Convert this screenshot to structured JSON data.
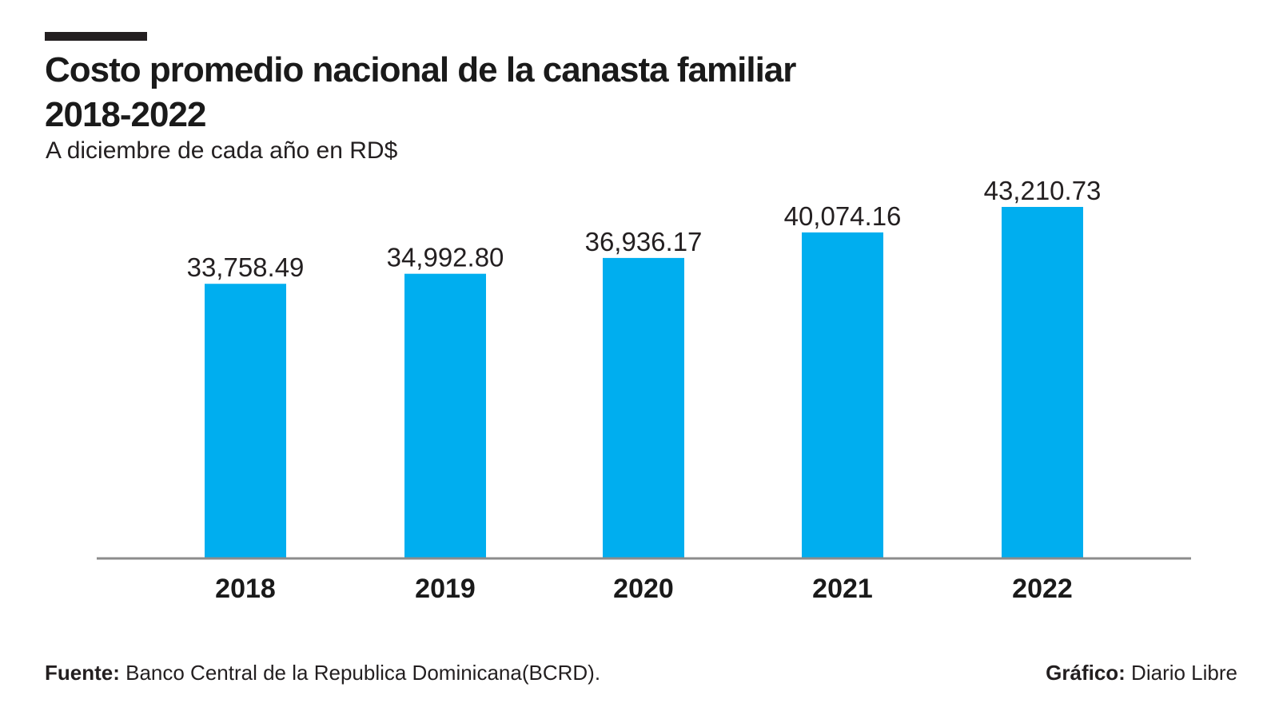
{
  "header": {
    "title_line1": "Costo promedio nacional de la canasta familiar",
    "title_line2": "2018-2022",
    "subtitle": "A diciembre de cada año en RD$"
  },
  "footer": {
    "source_label": "Fuente:",
    "source_text": " Banco Central de la Republica Dominicana(BCRD).",
    "credit_label": "Gráfico:",
    "credit_text": " Diario Libre"
  },
  "colors": {
    "bar": "#00aeef",
    "axis": "#8c8c8c",
    "rule": "#231f20"
  },
  "chart_data": {
    "type": "bar",
    "title": "Costo promedio nacional de la canasta familiar 2018-2022",
    "subtitle": "A diciembre de cada año en RD$",
    "categories": [
      "2018",
      "2019",
      "2020",
      "2021",
      "2022"
    ],
    "values": [
      33758.49,
      34992.8,
      36936.17,
      40074.16,
      43210.73
    ],
    "value_labels": [
      "33,758.49",
      "34,992.80",
      "36,936.17",
      "40,074.16",
      "43,210.73"
    ],
    "xlabel": "",
    "ylabel": "",
    "ylim": [
      0,
      43210.73
    ],
    "grid": false,
    "legend": "none"
  }
}
